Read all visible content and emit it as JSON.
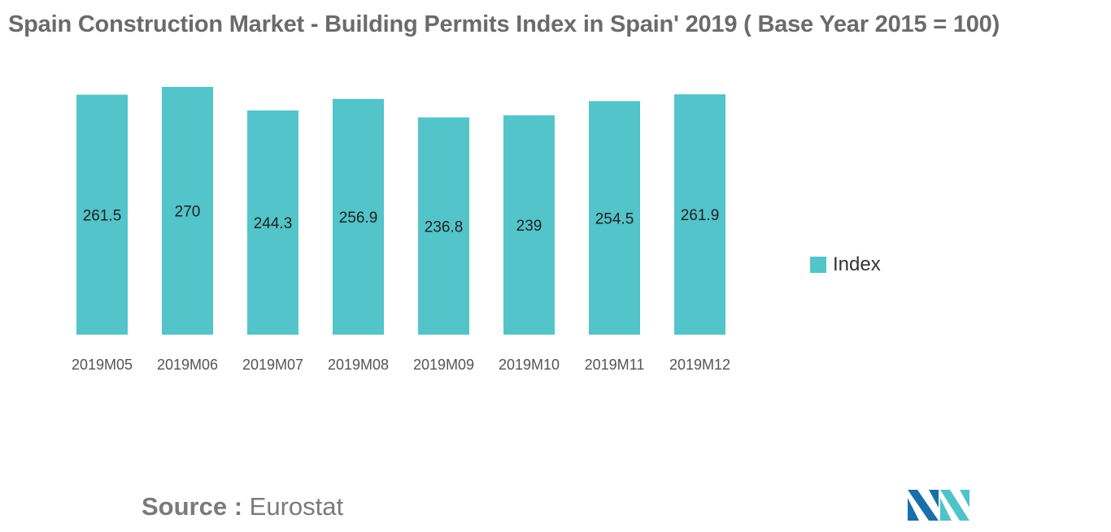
{
  "chart_data": {
    "type": "bar",
    "title": "Spain Construction Market - Building Permits Index in Spain' 2019 ( Base Year 2015 = 100)",
    "categories": [
      "2019M05",
      "2019M06",
      "2019M07",
      "2019M08",
      "2019M09",
      "2019M10",
      "2019M11",
      "2019M12"
    ],
    "series": [
      {
        "name": "Index",
        "values": [
          261.5,
          270,
          244.3,
          256.9,
          236.8,
          239,
          254.5,
          261.9
        ]
      }
    ],
    "value_labels": [
      "261.5",
      "270",
      "244.3",
      "256.9",
      "236.8",
      "239",
      "254.5",
      "261.9"
    ],
    "xlabel": "",
    "ylabel": "",
    "ylim": [
      0,
      270
    ],
    "grid": false,
    "legend_position": "right",
    "bar_color": "#52c4ca"
  },
  "source": {
    "prefix": "Source :",
    "text": "Eurostat"
  },
  "logo": {
    "icon": "mordor-intelligence-logo-icon",
    "colors": [
      "#1a6fa8",
      "#4ec3c9"
    ]
  }
}
